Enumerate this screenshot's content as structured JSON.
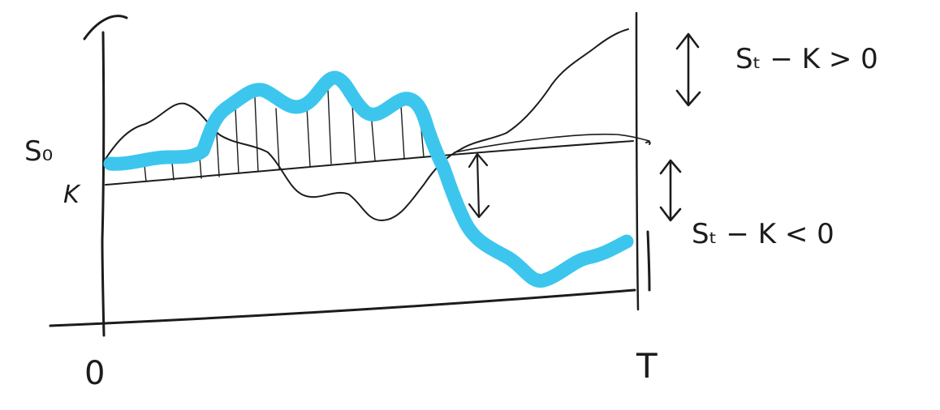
{
  "labels": {
    "s0": "S₀",
    "k": "K",
    "origin": "0",
    "maturity": "T",
    "payoff_positive": "Sₜ − K > 0",
    "payoff_negative": "Sₜ − K < 0"
  },
  "colors": {
    "ink": "#1c1c1c",
    "highlight_path": "#3cc6ee",
    "background": "#ffffff"
  }
}
